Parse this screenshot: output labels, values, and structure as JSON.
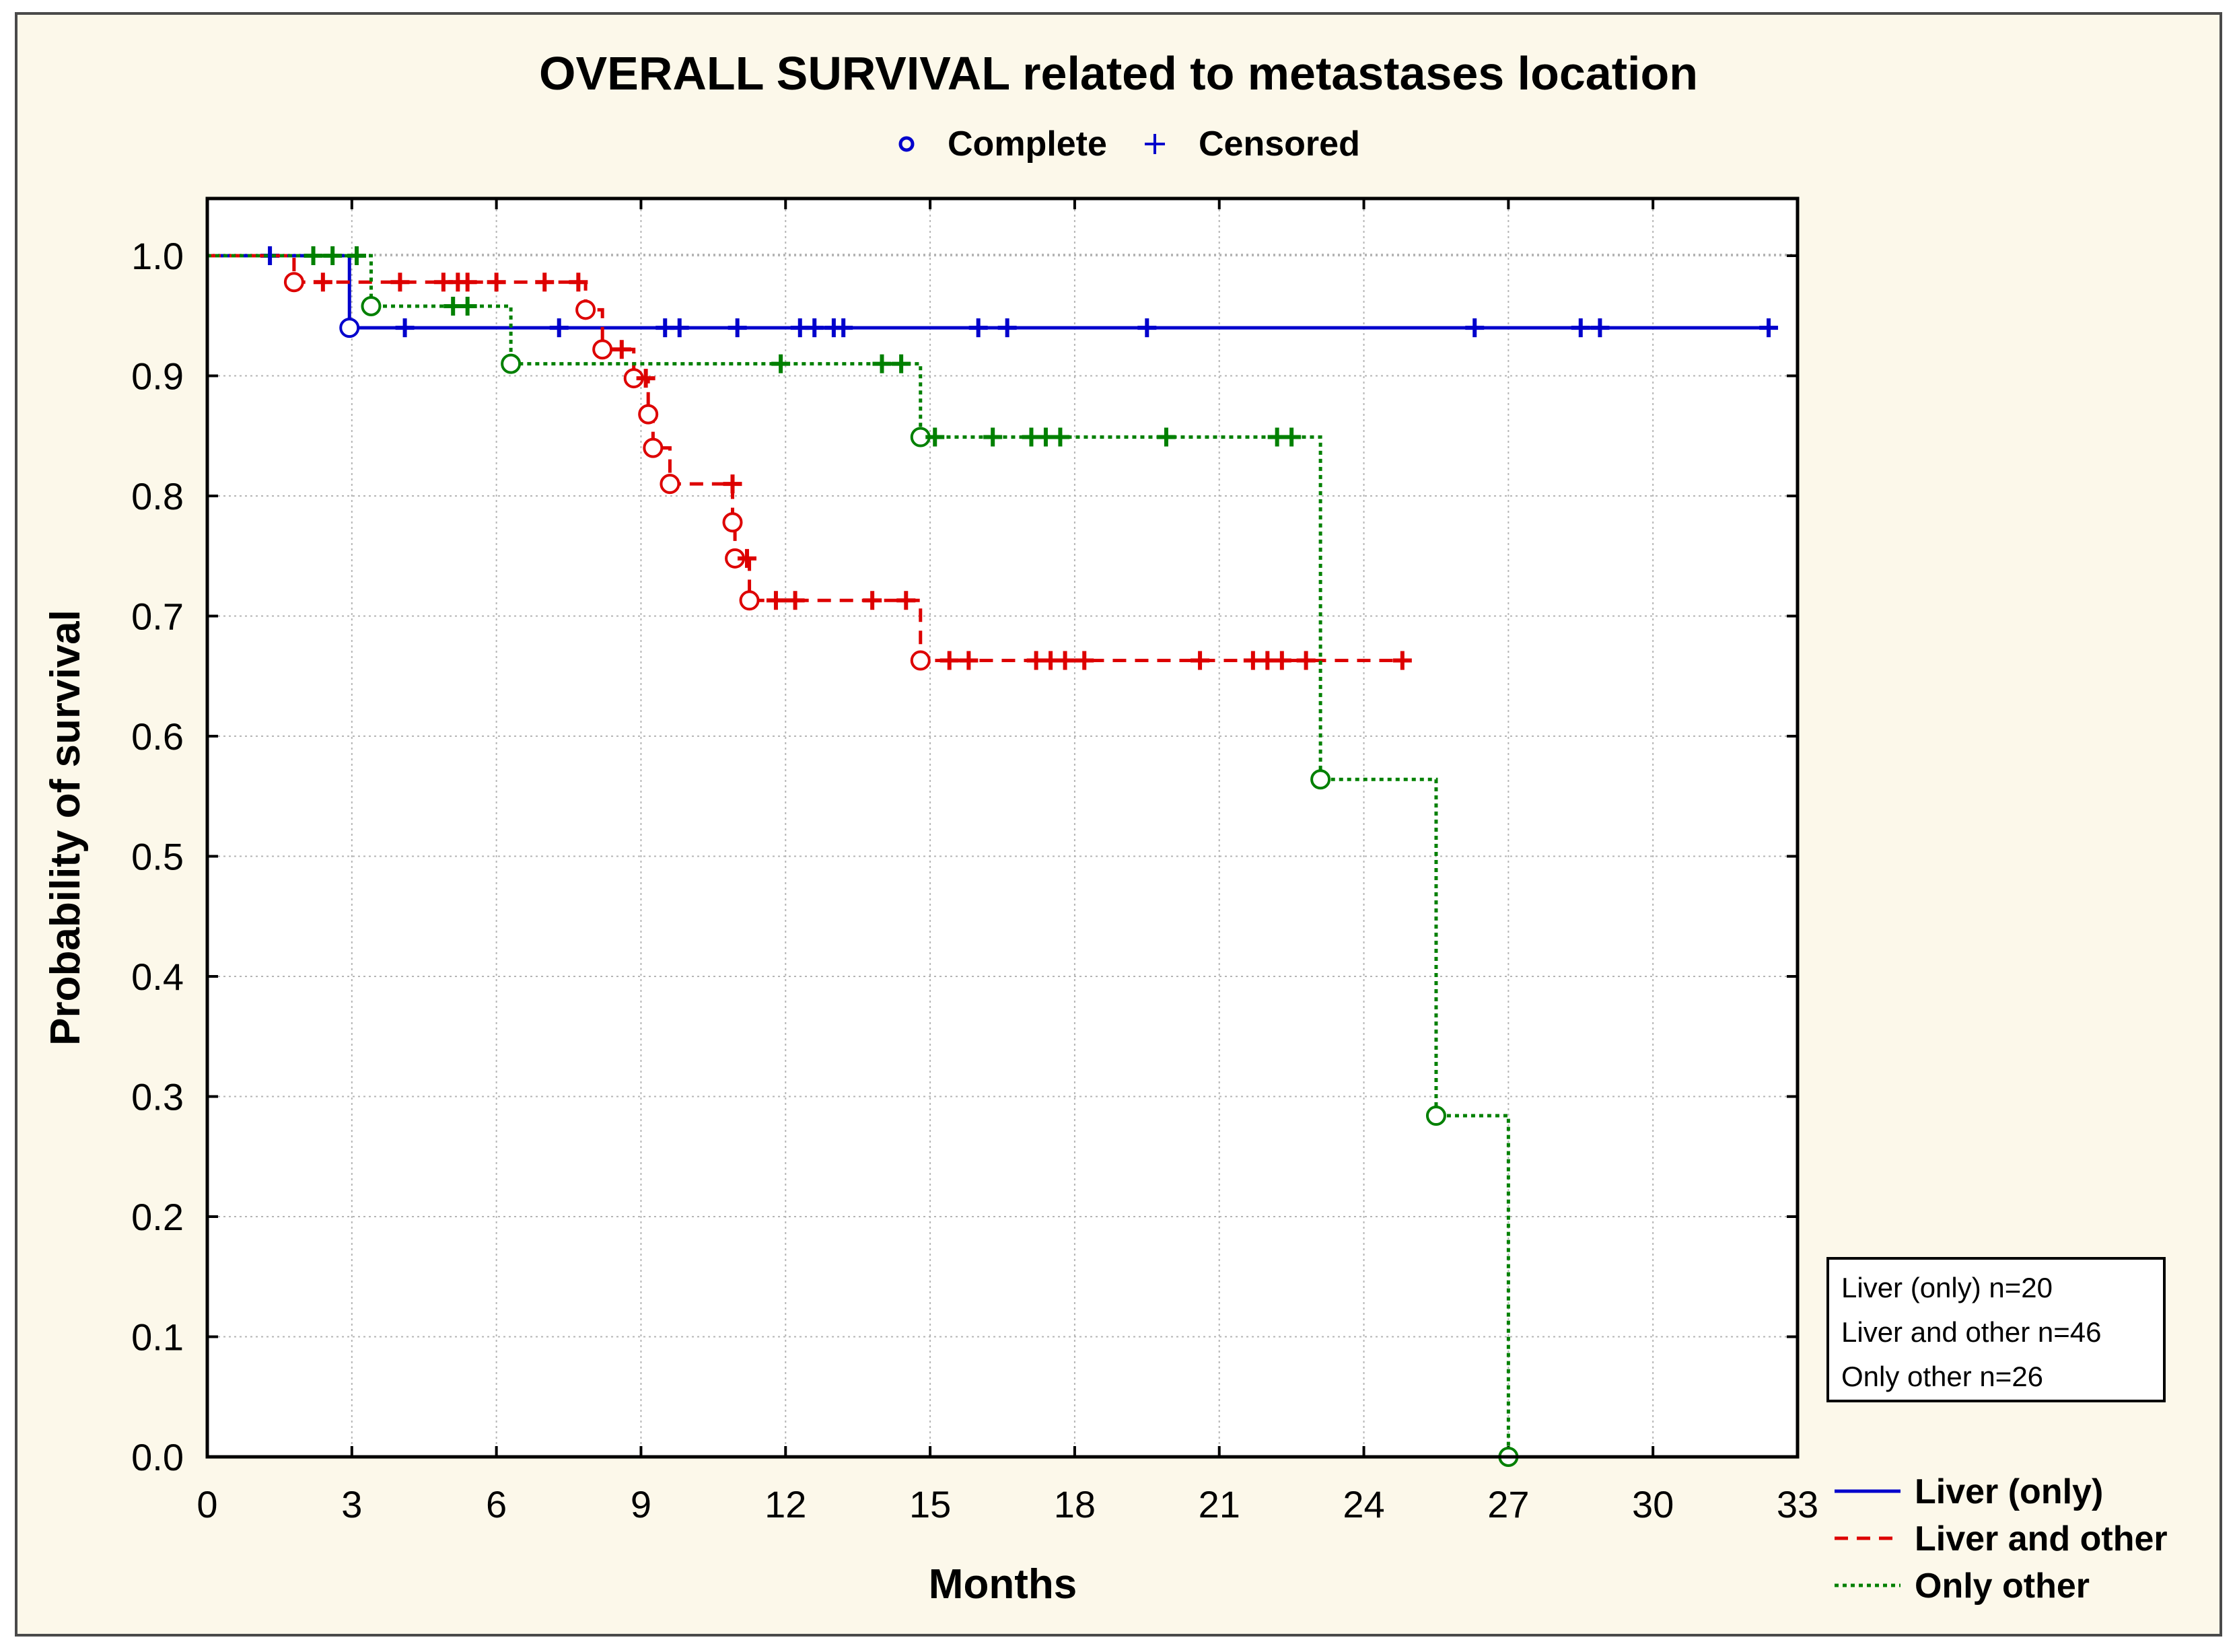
{
  "chart_data": {
    "type": "line",
    "title": "OVERALL SURVIVAL related to metastases location",
    "marker_legend": {
      "complete_label": "Complete",
      "censored_label": "Censored"
    },
    "xlabel": "Months",
    "ylabel": "Probability of survival",
    "xlim": [
      0,
      33
    ],
    "ylim": [
      0,
      1.0
    ],
    "x_ticks": [
      "0",
      "3",
      "6",
      "9",
      "12",
      "15",
      "18",
      "21",
      "24",
      "27",
      "30",
      "33"
    ],
    "y_ticks": [
      "0.0",
      "0.1",
      "0.2",
      "0.3",
      "0.4",
      "0.5",
      "0.6",
      "0.7",
      "0.8",
      "0.9",
      "1.0"
    ],
    "grid": true,
    "sample_sizes": [
      "Liver (only) n=20",
      "Liver and other n=46",
      "Only other n=26"
    ],
    "legend_position": "bottom-right",
    "series": [
      {
        "name": "Liver (only)",
        "color": "#0000cc",
        "dash": "solid",
        "steps": [
          [
            0,
            1.0
          ],
          [
            2.95,
            0.94
          ]
        ],
        "events": [
          [
            2.95,
            0.94
          ]
        ],
        "censored": [
          [
            1.3,
            1.0
          ],
          [
            4.1,
            0.94
          ],
          [
            7.3,
            0.94
          ],
          [
            9.5,
            0.94
          ],
          [
            9.8,
            0.94
          ],
          [
            11.0,
            0.94
          ],
          [
            12.3,
            0.94
          ],
          [
            12.6,
            0.94
          ],
          [
            13.0,
            0.94
          ],
          [
            13.2,
            0.94
          ],
          [
            16.0,
            0.94
          ],
          [
            16.6,
            0.94
          ],
          [
            19.5,
            0.94
          ],
          [
            26.3,
            0.94
          ],
          [
            28.5,
            0.94
          ],
          [
            28.9,
            0.94
          ],
          [
            32.4,
            0.94
          ]
        ],
        "end_x": 32.4
      },
      {
        "name": "Liver and other",
        "color": "#dd0000",
        "dash": "dashed",
        "steps": [
          [
            0,
            1.0
          ],
          [
            1.8,
            0.978
          ],
          [
            7.85,
            0.955
          ],
          [
            8.2,
            0.922
          ],
          [
            8.85,
            0.898
          ],
          [
            9.15,
            0.868
          ],
          [
            9.25,
            0.84
          ],
          [
            9.6,
            0.81
          ],
          [
            10.9,
            0.778
          ],
          [
            10.95,
            0.748
          ],
          [
            11.25,
            0.713
          ],
          [
            14.8,
            0.663
          ]
        ],
        "events": [
          [
            1.8,
            0.978
          ],
          [
            7.85,
            0.955
          ],
          [
            8.2,
            0.922
          ],
          [
            8.85,
            0.898
          ],
          [
            9.15,
            0.868
          ],
          [
            9.25,
            0.84
          ],
          [
            9.6,
            0.81
          ],
          [
            10.9,
            0.778
          ],
          [
            10.95,
            0.748
          ],
          [
            11.25,
            0.713
          ],
          [
            14.8,
            0.663
          ]
        ],
        "censored": [
          [
            2.4,
            0.978
          ],
          [
            4.0,
            0.978
          ],
          [
            4.9,
            0.978
          ],
          [
            5.2,
            0.978
          ],
          [
            5.4,
            0.978
          ],
          [
            6.0,
            0.978
          ],
          [
            7.0,
            0.978
          ],
          [
            7.7,
            0.978
          ],
          [
            8.6,
            0.922
          ],
          [
            9.1,
            0.898
          ],
          [
            10.9,
            0.81
          ],
          [
            11.2,
            0.748
          ],
          [
            11.8,
            0.713
          ],
          [
            12.2,
            0.713
          ],
          [
            13.8,
            0.713
          ],
          [
            14.5,
            0.713
          ],
          [
            15.4,
            0.663
          ],
          [
            15.8,
            0.663
          ],
          [
            17.2,
            0.663
          ],
          [
            17.5,
            0.663
          ],
          [
            17.8,
            0.663
          ],
          [
            18.2,
            0.663
          ],
          [
            20.6,
            0.663
          ],
          [
            21.7,
            0.663
          ],
          [
            22.0,
            0.663
          ],
          [
            22.3,
            0.663
          ],
          [
            22.8,
            0.663
          ],
          [
            24.8,
            0.663
          ]
        ],
        "end_x": 24.8
      },
      {
        "name": "Only other",
        "color": "#008000",
        "dash": "dotted",
        "steps": [
          [
            0,
            1.0
          ],
          [
            3.4,
            0.958
          ],
          [
            6.3,
            0.91
          ],
          [
            14.8,
            0.849
          ],
          [
            23.1,
            0.564
          ],
          [
            25.5,
            0.284
          ],
          [
            27.0,
            0.0
          ]
        ],
        "events": [
          [
            3.4,
            0.958
          ],
          [
            6.3,
            0.91
          ],
          [
            14.8,
            0.849
          ],
          [
            23.1,
            0.564
          ],
          [
            25.5,
            0.284
          ],
          [
            27.0,
            0.0
          ]
        ],
        "censored": [
          [
            2.2,
            1.0
          ],
          [
            2.6,
            1.0
          ],
          [
            3.1,
            1.0
          ],
          [
            5.1,
            0.958
          ],
          [
            5.4,
            0.958
          ],
          [
            11.9,
            0.91
          ],
          [
            14.0,
            0.91
          ],
          [
            14.4,
            0.91
          ],
          [
            15.1,
            0.849
          ],
          [
            16.3,
            0.849
          ],
          [
            17.1,
            0.849
          ],
          [
            17.4,
            0.849
          ],
          [
            17.7,
            0.849
          ],
          [
            19.9,
            0.849
          ],
          [
            22.2,
            0.849
          ],
          [
            22.5,
            0.849
          ]
        ],
        "end_x": 27.0
      }
    ]
  }
}
